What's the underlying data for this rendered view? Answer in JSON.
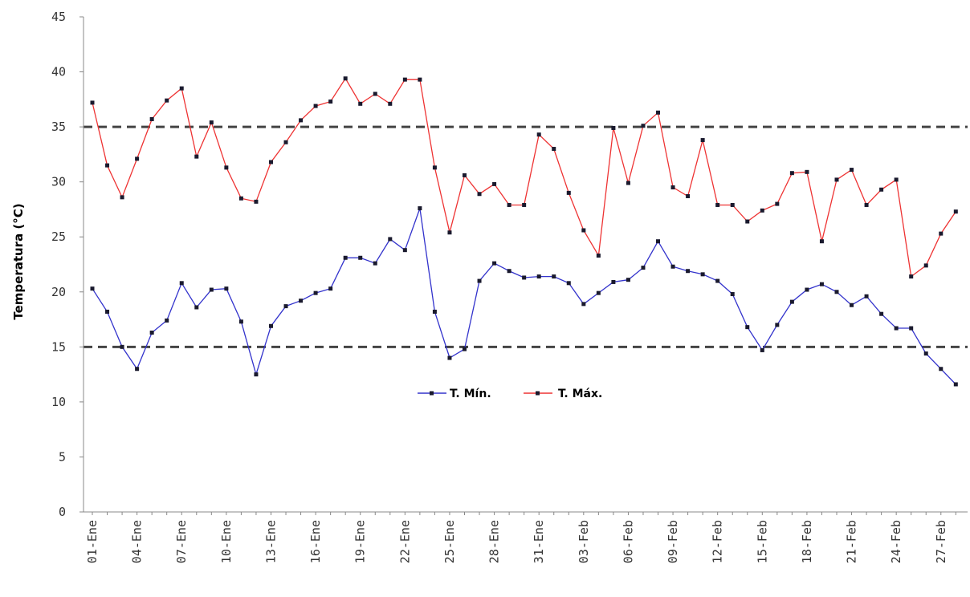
{
  "chart_data": {
    "type": "line",
    "title": "",
    "xlabel": "",
    "ylabel": "Temperatura (°C)",
    "ylim": [
      0,
      45
    ],
    "yticks": [
      0,
      5,
      10,
      15,
      20,
      25,
      30,
      35,
      40,
      45
    ],
    "xtick_labels": [
      "01-Ene",
      "04-Ene",
      "07-Ene",
      "10-Ene",
      "13-Ene",
      "16-Ene",
      "19-Ene",
      "22-Ene",
      "25-Ene",
      "28-Ene",
      "31-Ene",
      "03-Feb",
      "06-Feb",
      "09-Feb",
      "12-Feb",
      "15-Feb",
      "18-Feb",
      "21-Feb",
      "24-Feb",
      "27-Feb"
    ],
    "xtick_step": 3,
    "n_points": 59,
    "reference_lines": [
      35,
      15
    ],
    "legend_position": "center",
    "series": [
      {
        "name": "T. Mín.",
        "color": "#3333cc",
        "values": [
          20.3,
          18.2,
          15.0,
          13.0,
          16.3,
          17.4,
          20.8,
          18.6,
          20.2,
          20.3,
          17.3,
          12.5,
          16.9,
          18.7,
          19.2,
          19.9,
          20.3,
          23.1,
          23.1,
          22.6,
          24.8,
          23.8,
          27.6,
          18.2,
          14.0,
          14.8,
          21.0,
          22.6,
          21.9,
          21.3,
          21.4,
          21.4,
          20.8,
          18.9,
          19.9,
          20.9,
          21.1,
          22.2,
          24.6,
          22.3,
          21.9,
          21.6,
          21.0,
          19.8,
          16.8,
          14.7,
          17.0,
          19.1,
          20.2,
          20.7,
          20.0,
          18.8,
          19.6,
          18.0,
          16.7,
          16.7,
          14.4,
          13.0,
          11.6
        ]
      },
      {
        "name": "T. Máx.",
        "color": "#ee3333",
        "values": [
          37.2,
          31.5,
          28.6,
          32.1,
          35.7,
          37.4,
          38.5,
          32.3,
          35.4,
          31.3,
          28.5,
          28.2,
          31.8,
          33.6,
          35.6,
          36.9,
          37.3,
          39.4,
          37.1,
          38.0,
          37.1,
          39.3,
          39.3,
          31.3,
          25.4,
          30.6,
          28.9,
          29.8,
          27.9,
          27.9,
          34.3,
          33.0,
          29.0,
          25.6,
          23.3,
          34.9,
          29.9,
          35.1,
          36.3,
          29.5,
          28.7,
          33.8,
          27.9,
          27.9,
          26.4,
          27.4,
          28.0,
          30.8,
          30.9,
          24.6,
          30.2,
          31.1,
          27.9,
          29.3,
          30.2,
          21.4,
          22.4,
          25.3,
          27.3
        ]
      }
    ]
  }
}
